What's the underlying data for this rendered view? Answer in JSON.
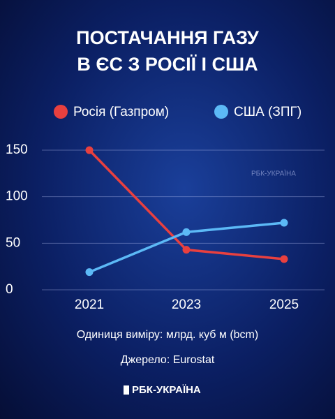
{
  "chart_data": {
    "type": "line",
    "title": [
      "ПОСТАЧАННЯ ГАЗУ",
      "В ЄС З РОСІЇ І США"
    ],
    "categories": [
      "2021",
      "2023",
      "2025"
    ],
    "series": [
      {
        "name": "Росія (Газпром)",
        "color": "#e8403f",
        "values": [
          150,
          43,
          33
        ]
      },
      {
        "name": "США (ЗПГ)",
        "color": "#5cb9f6",
        "values": [
          19,
          62,
          72
        ]
      }
    ],
    "ylim": [
      0,
      150
    ],
    "yticks": [
      0,
      50,
      100,
      150
    ],
    "grid": true,
    "unit_note": "Одиниця виміру: млрд. куб м (bcm)",
    "source": "Джерело: Eurostat",
    "brand": "РБК-УКРАЇНА"
  }
}
